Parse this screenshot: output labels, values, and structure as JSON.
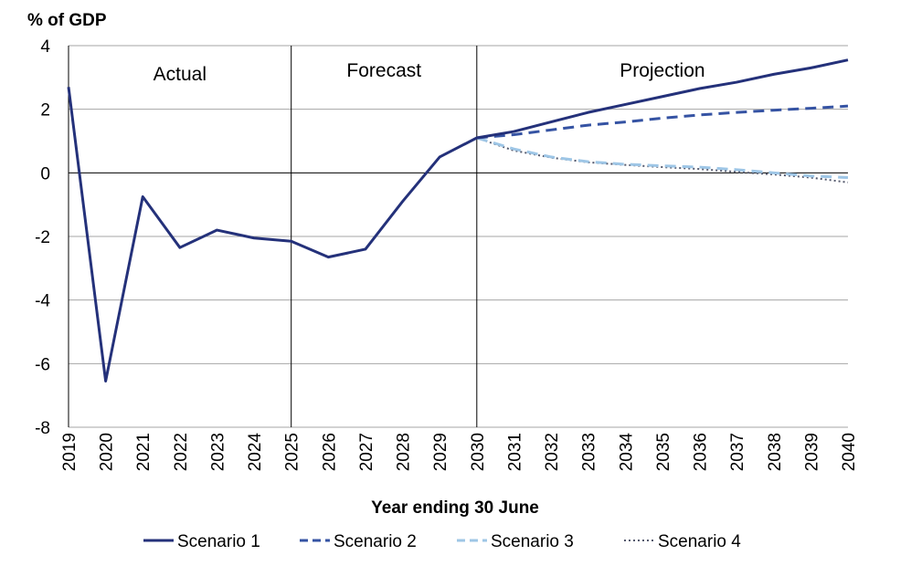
{
  "chart_data": {
    "type": "line",
    "ylabel": "% of GDP",
    "xlabel": "Year ending 30 June",
    "ylim": [
      -8,
      4
    ],
    "yticks": [
      "4",
      "2",
      "0",
      "-2",
      "-4",
      "-6",
      "-8"
    ],
    "x": [
      "2019",
      "2020",
      "2021",
      "2022",
      "2023",
      "2024",
      "2025",
      "2026",
      "2027",
      "2028",
      "2029",
      "2030",
      "2031",
      "2032",
      "2033",
      "2034",
      "2035",
      "2036",
      "2037",
      "2038",
      "2039",
      "2040"
    ],
    "periods": [
      {
        "label": "Actual",
        "from": "2019",
        "to": "2025"
      },
      {
        "label": "Forecast",
        "from": "2025",
        "to": "2030"
      },
      {
        "label": "Projection",
        "from": "2030",
        "to": "2040"
      }
    ],
    "grid": true,
    "legend_position": "bottom",
    "series": [
      {
        "name": "Scenario 1",
        "color": "#24317a",
        "style": "solid",
        "values": [
          2.7,
          -6.55,
          -0.75,
          -2.35,
          -1.8,
          -2.05,
          -2.15,
          -2.65,
          -2.4,
          -0.9,
          0.5,
          1.1,
          1.3,
          1.6,
          1.9,
          2.15,
          2.4,
          2.65,
          2.85,
          3.1,
          3.3,
          3.55
        ]
      },
      {
        "name": "Scenario 2",
        "color": "#3553a3",
        "style": "dashed",
        "values": [
          null,
          null,
          null,
          null,
          null,
          null,
          null,
          null,
          null,
          null,
          null,
          1.1,
          1.2,
          1.35,
          1.5,
          1.6,
          1.72,
          1.82,
          1.9,
          1.97,
          2.03,
          2.1
        ]
      },
      {
        "name": "Scenario 3",
        "color": "#9ec6e6",
        "style": "dashed",
        "values": [
          null,
          null,
          null,
          null,
          null,
          null,
          null,
          null,
          null,
          null,
          null,
          1.1,
          0.75,
          0.5,
          0.35,
          0.27,
          0.22,
          0.18,
          0.1,
          0.0,
          -0.1,
          -0.15
        ]
      },
      {
        "name": "Scenario 4",
        "color": "#555a6e",
        "style": "dotted",
        "values": [
          null,
          null,
          null,
          null,
          null,
          null,
          null,
          null,
          null,
          null,
          null,
          1.1,
          0.7,
          0.48,
          0.33,
          0.25,
          0.18,
          0.12,
          0.03,
          -0.05,
          -0.15,
          -0.3
        ]
      }
    ]
  }
}
